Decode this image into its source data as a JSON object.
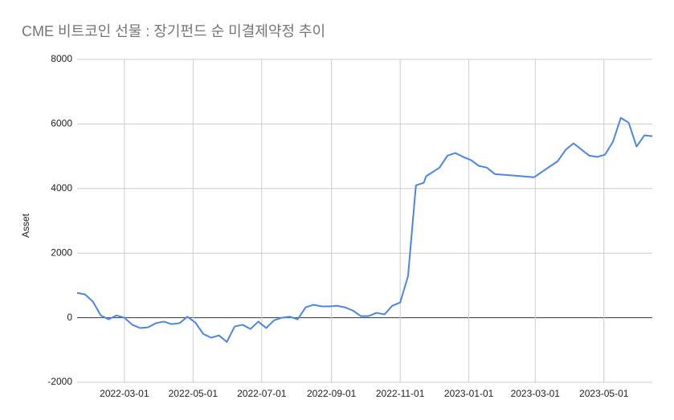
{
  "chart_data": {
    "type": "line",
    "title": "CME 비트코인 선물 : 장기펀드 순 미결제약정 추이",
    "y_label": "Asset",
    "x": [
      "2022-01-18",
      "2022-01-25",
      "2022-02-01",
      "2022-02-08",
      "2022-02-15",
      "2022-02-22",
      "2022-03-01",
      "2022-03-08",
      "2022-03-15",
      "2022-03-22",
      "2022-03-29",
      "2022-04-05",
      "2022-04-12",
      "2022-04-19",
      "2022-04-26",
      "2022-05-03",
      "2022-05-10",
      "2022-05-17",
      "2022-05-24",
      "2022-05-31",
      "2022-06-07",
      "2022-06-14",
      "2022-06-21",
      "2022-06-28",
      "2022-07-05",
      "2022-07-12",
      "2022-07-19",
      "2022-07-26",
      "2022-08-02",
      "2022-08-09",
      "2022-08-16",
      "2022-08-23",
      "2022-08-30",
      "2022-09-06",
      "2022-09-13",
      "2022-09-20",
      "2022-09-27",
      "2022-10-04",
      "2022-10-11",
      "2022-10-18",
      "2022-10-25",
      "2022-11-01",
      "2022-11-08",
      "2022-11-15",
      "2022-11-22",
      "2022-11-24",
      "2022-12-06",
      "2022-12-13",
      "2022-12-20",
      "2022-12-27",
      "2023-01-03",
      "2023-01-10",
      "2023-01-17",
      "2023-01-24",
      "2023-02-28",
      "2023-03-21",
      "2023-03-28",
      "2023-04-04",
      "2023-04-18",
      "2023-04-25",
      "2023-05-02",
      "2023-05-09",
      "2023-05-16",
      "2023-05-23",
      "2023-05-30",
      "2023-06-06",
      "2023-06-13"
    ],
    "series": [
      {
        "name": "Asset",
        "color": "#4a86e8",
        "values": [
          770,
          720,
          500,
          70,
          -50,
          70,
          0,
          -220,
          -320,
          -300,
          -170,
          -120,
          -200,
          -170,
          30,
          -150,
          -500,
          -620,
          -550,
          -750,
          -270,
          -220,
          -350,
          -120,
          -320,
          -80,
          0,
          30,
          -50,
          320,
          400,
          350,
          350,
          370,
          320,
          220,
          50,
          50,
          150,
          100,
          370,
          470,
          1290,
          4100,
          4180,
          4380,
          4650,
          5020,
          5100,
          4980,
          4880,
          4700,
          4650,
          4450,
          4350,
          4850,
          5200,
          5400,
          5020,
          4980,
          5050,
          5450,
          6190,
          6040,
          5300,
          5650,
          5620
        ]
      }
    ],
    "xlim": [
      "2022-01-18",
      "2023-06-13"
    ],
    "xticks": [
      "2022-03-01",
      "2022-05-01",
      "2022-07-01",
      "2022-09-01",
      "2022-11-01",
      "2023-01-01",
      "2023-03-01",
      "2023-05-01"
    ],
    "ylim": [
      -2000,
      8000
    ],
    "yticks": [
      -2000,
      0,
      2000,
      4000,
      6000,
      8000
    ],
    "grid": true
  }
}
